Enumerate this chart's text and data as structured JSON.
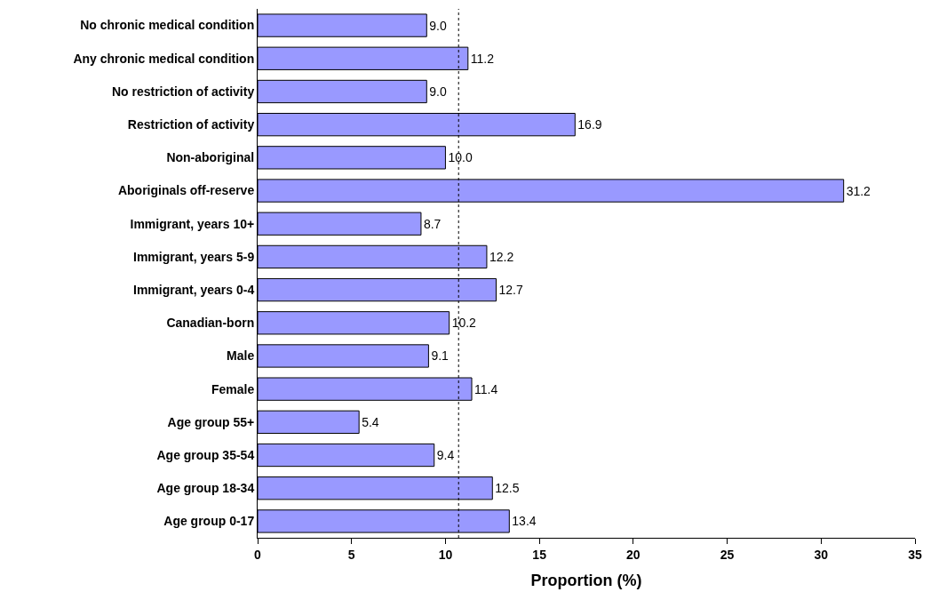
{
  "chart_data": {
    "type": "bar",
    "orientation": "horizontal",
    "xlabel": "Proportion (%)",
    "categories": [
      "No chronic medical condition",
      "Any chronic medical condition",
      "No restriction of activity",
      "Restriction of activity",
      "Non-aboriginal",
      "Aboriginals off-reserve",
      "Immigrant, years 10+",
      "Immigrant, years 5-9",
      "Immigrant, years 0-4",
      "Canadian-born",
      "Male",
      "Female",
      "Age group 55+",
      "Age group 35-54",
      "Age group 18-34",
      "Age group 0-17"
    ],
    "values": [
      9.0,
      11.2,
      9.0,
      16.9,
      10.0,
      31.2,
      8.7,
      12.2,
      12.7,
      10.2,
      9.1,
      11.4,
      5.4,
      9.4,
      12.5,
      13.4
    ],
    "value_labels": [
      "9.0",
      "11.2",
      "9.0",
      "16.9",
      "10.0",
      "31.2",
      "8.7",
      "12.2",
      "12.7",
      "10.2",
      "9.1",
      "11.4",
      "5.4",
      "9.4",
      "12.5",
      "13.4"
    ],
    "color": "#9999ff",
    "xlim": [
      0,
      35
    ],
    "xticks": [
      0,
      5,
      10,
      15,
      20,
      25,
      30,
      35
    ],
    "ref_lines": [
      {
        "axis": "x",
        "value": 10.7,
        "color": "#000000",
        "line_style": "dotted"
      }
    ],
    "data_labels": true
  }
}
